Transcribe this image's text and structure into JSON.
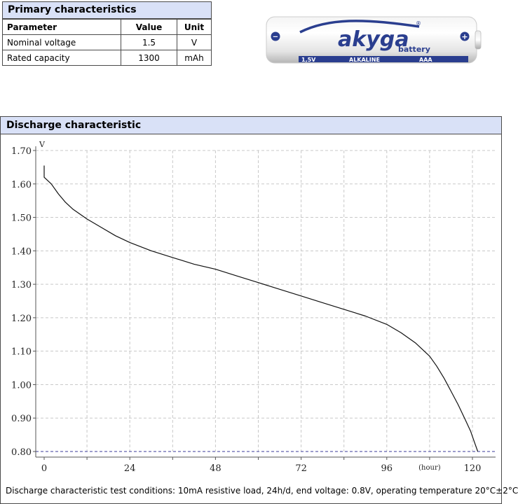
{
  "primary": {
    "title": "Primary characteristics",
    "headers": [
      "Parameter",
      "Value",
      "Unit"
    ],
    "rows": [
      [
        "Nominal voltage",
        "1.5",
        "V"
      ],
      [
        "Rated capacity",
        "1300",
        "mAh"
      ]
    ]
  },
  "battery": {
    "brand": "akyga",
    "sub": "battery",
    "voltage": "1,5V",
    "chemistry": "ALKALINE",
    "size": "AAA",
    "registered": "®",
    "minus": "−",
    "plus": "+"
  },
  "discharge": {
    "title": "Discharge characteristic",
    "conditions": "Discharge characteristic test conditions: 10mA resistive load, 24h/d, end voltage: 0.8V, operating temperature 20°C±2°C"
  },
  "chart_data": {
    "type": "line",
    "title": "",
    "xlabel": "(hour)",
    "ylabel": "V",
    "xlim": [
      0,
      126
    ],
    "ylim": [
      0.8,
      1.7
    ],
    "x_ticks": [
      0,
      24,
      48,
      72,
      96,
      120
    ],
    "x_tick_labels": [
      "0",
      "24",
      "48",
      "72",
      "96",
      "120"
    ],
    "y_ticks": [
      0.8,
      0.9,
      1.0,
      1.1,
      1.2,
      1.3,
      1.4,
      1.5,
      1.6,
      1.7
    ],
    "y_tick_labels": [
      "0.80",
      "0.90",
      "1.00",
      "1.10",
      "1.20",
      "1.30",
      "1.40",
      "1.50",
      "1.60",
      "1.70"
    ],
    "grid": true,
    "end_voltage": 0.8,
    "series": [
      {
        "x": [
          0,
          0,
          2,
          4,
          6,
          8,
          10,
          12,
          16,
          20,
          24,
          30,
          36,
          42,
          48,
          54,
          60,
          66,
          72,
          78,
          84,
          90,
          96,
          100,
          104,
          108,
          110,
          112,
          114,
          116,
          118,
          119.5,
          120.5,
          121.5
        ],
        "y": [
          1.655,
          1.62,
          1.6,
          1.57,
          1.545,
          1.525,
          1.51,
          1.495,
          1.47,
          1.445,
          1.425,
          1.4,
          1.38,
          1.36,
          1.345,
          1.325,
          1.305,
          1.285,
          1.265,
          1.245,
          1.225,
          1.205,
          1.18,
          1.155,
          1.125,
          1.085,
          1.055,
          1.02,
          0.98,
          0.94,
          0.895,
          0.86,
          0.83,
          0.8
        ]
      }
    ]
  }
}
